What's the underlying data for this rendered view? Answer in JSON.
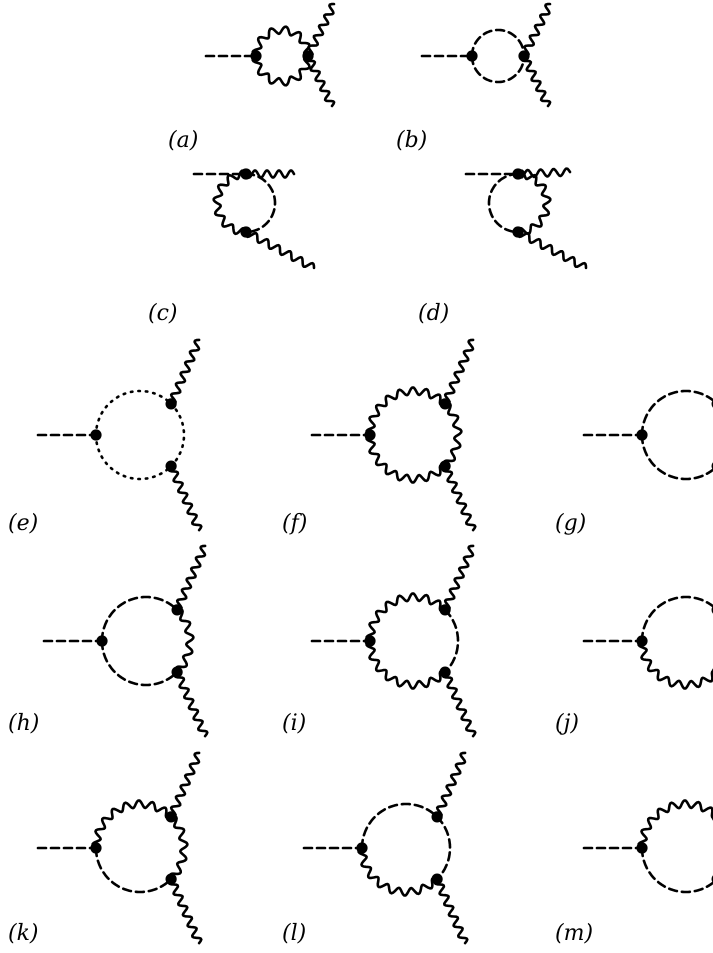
{
  "diagrams": [
    {
      "id": "a",
      "label": "(a)"
    },
    {
      "id": "b",
      "label": "(b)"
    },
    {
      "id": "c",
      "label": "(c)"
    },
    {
      "id": "d",
      "label": "(d)"
    },
    {
      "id": "e",
      "label": "(e)"
    },
    {
      "id": "f",
      "label": "(f)"
    },
    {
      "id": "g",
      "label": "(g)"
    },
    {
      "id": "h",
      "label": "(h)"
    },
    {
      "id": "i",
      "label": "(i)"
    },
    {
      "id": "j",
      "label": "(j)"
    },
    {
      "id": "k",
      "label": "(k)"
    },
    {
      "id": "l",
      "label": "(l)"
    },
    {
      "id": "m",
      "label": "(m)"
    }
  ]
}
